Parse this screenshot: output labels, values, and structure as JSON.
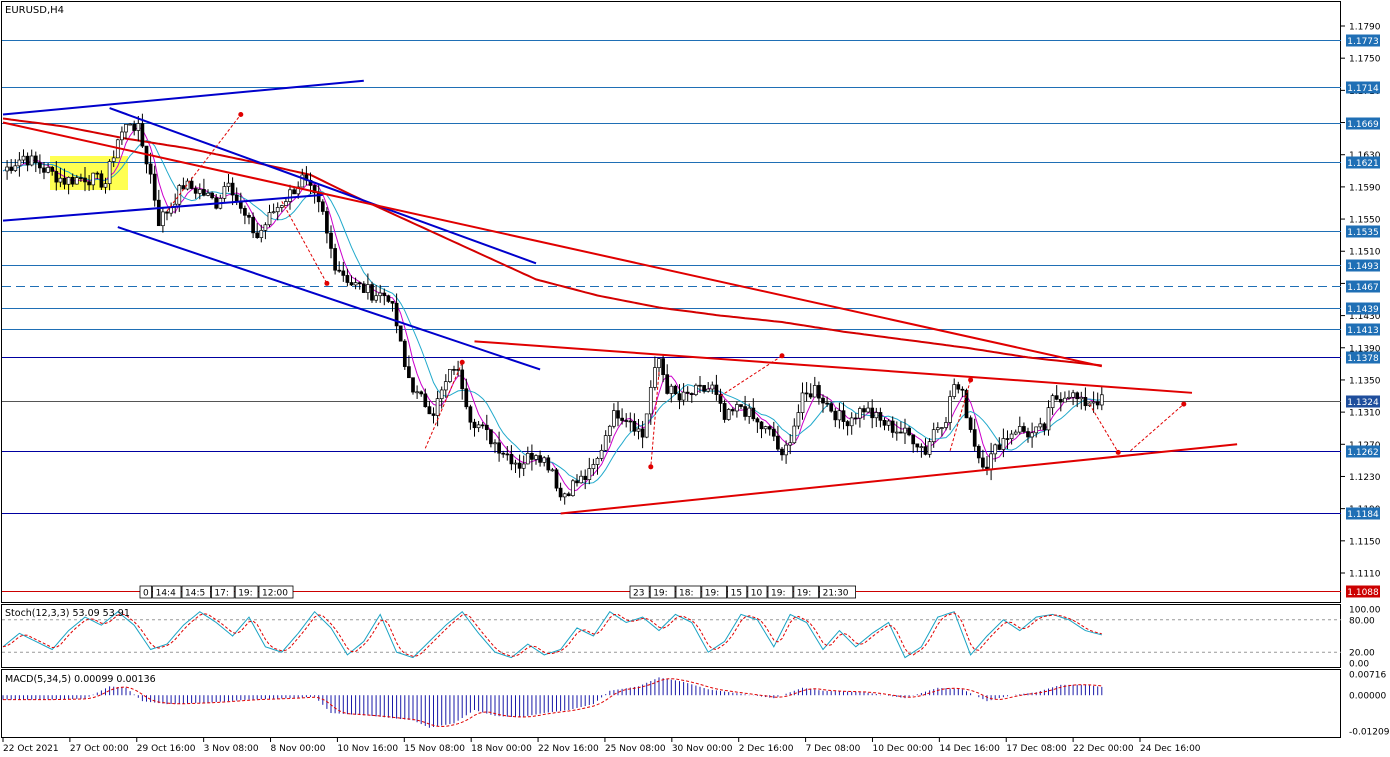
{
  "chart_data": {
    "type": "candlestick",
    "title": "EURUSD,H4",
    "price_axis": {
      "ticks": [
        "1.1790",
        "1.1750",
        "1.1710",
        "1.1670",
        "1.1630",
        "1.1590",
        "1.1550",
        "1.1510",
        "1.1470",
        "1.1430",
        "1.1390",
        "1.1350",
        "1.1310",
        "1.1270",
        "1.1230",
        "1.1190",
        "1.1150",
        "1.1110"
      ],
      "range": [
        1.1081,
        1.1811
      ]
    },
    "horizontal_levels": [
      {
        "label": "1.1773",
        "value": 1.1773,
        "color": "#1f6fb5",
        "style": "solid"
      },
      {
        "label": "1.1714",
        "value": 1.1714,
        "color": "#1f6fb5",
        "style": "solid"
      },
      {
        "label": "1.1669",
        "value": 1.1669,
        "color": "#1f6fb5",
        "style": "solid"
      },
      {
        "label": "1.1621",
        "value": 1.1621,
        "color": "#1f6fb5",
        "style": "solid"
      },
      {
        "label": "1.1535",
        "value": 1.1535,
        "color": "#1f6fb5",
        "style": "solid"
      },
      {
        "label": "1.1493",
        "value": 1.1493,
        "color": "#1f6fb5",
        "style": "solid"
      },
      {
        "label": "1.1467",
        "value": 1.1467,
        "color": "#1f6fb5",
        "style": "dashed"
      },
      {
        "label": "1.1439",
        "value": 1.1439,
        "color": "#1f6fb5",
        "style": "solid"
      },
      {
        "label": "1.1413",
        "value": 1.1413,
        "color": "#1f6fb5",
        "style": "solid"
      },
      {
        "label": "1.1378",
        "value": 1.1378,
        "color": "#0000a0",
        "style": "solid"
      },
      {
        "label": "1.1324",
        "value": 1.1324,
        "color": "#555555",
        "style": "solid"
      },
      {
        "label": "1.1262",
        "value": 1.1262,
        "color": "#0000a0",
        "style": "solid"
      },
      {
        "label": "1.1184",
        "value": 1.1184,
        "color": "#0000a0",
        "style": "solid"
      },
      {
        "label": "1.1088",
        "value": 1.1088,
        "color": "#cc0000",
        "style": "solid"
      }
    ],
    "time_axis": [
      "22 Oct 2021",
      "27 Oct 00:00",
      "29 Oct 16:00",
      "3 Nov 08:00",
      "8 Nov 00:00",
      "10 Nov 16:00",
      "15 Nov 08:00",
      "18 Nov 00:00",
      "22 Nov 16:00",
      "25 Nov 08:00",
      "30 Nov 00:00",
      "2 Dec 16:00",
      "7 Dec 08:00",
      "10 Dec 00:00",
      "14 Dec 16:00",
      "17 Dec 08:00",
      "22 Dec 00:00",
      "24 Dec 16:00"
    ],
    "event_labels_left": [
      "0",
      "14:4",
      "14:5",
      "17:",
      "19:",
      "12:00"
    ],
    "event_labels_right": [
      "23",
      "19:",
      "18:",
      "19:",
      "15",
      "10",
      "19:",
      "19:",
      "21:30"
    ],
    "close_path": [
      [
        0,
        1.161
      ],
      [
        5,
        1.1628
      ],
      [
        10,
        1.1612
      ],
      [
        15,
        1.1598
      ],
      [
        20,
        1.1602
      ],
      [
        25,
        1.1595
      ],
      [
        28,
        1.165
      ],
      [
        31,
        1.1672
      ],
      [
        33,
        1.166
      ],
      [
        36,
        1.1605
      ],
      [
        38,
        1.1548
      ],
      [
        40,
        1.156
      ],
      [
        44,
        1.1592
      ],
      [
        48,
        1.1585
      ],
      [
        52,
        1.157
      ],
      [
        55,
        1.1602
      ],
      [
        58,
        1.156
      ],
      [
        62,
        1.1528
      ],
      [
        66,
        1.156
      ],
      [
        70,
        1.1582
      ],
      [
        73,
        1.16
      ],
      [
        76,
        1.1575
      ],
      [
        78,
        1.1555
      ],
      [
        79,
        1.153
      ],
      [
        81,
        1.1495
      ],
      [
        85,
        1.147
      ],
      [
        90,
        1.1458
      ],
      [
        94,
        1.1455
      ],
      [
        96,
        1.1418
      ],
      [
        98,
        1.1365
      ],
      [
        101,
        1.133
      ],
      [
        105,
        1.1312
      ],
      [
        108,
        1.1345
      ],
      [
        110,
        1.1368
      ],
      [
        112,
        1.1345
      ],
      [
        114,
        1.1305
      ],
      [
        118,
        1.1282
      ],
      [
        122,
        1.1262
      ],
      [
        126,
        1.1245
      ],
      [
        130,
        1.1262
      ],
      [
        134,
        1.124
      ],
      [
        136,
        1.1205
      ],
      [
        139,
        1.122
      ],
      [
        143,
        1.1232
      ],
      [
        145,
        1.125
      ],
      [
        148,
        1.13
      ],
      [
        150,
        1.131
      ],
      [
        153,
        1.1302
      ],
      [
        156,
        1.128
      ],
      [
        158,
        1.134
      ],
      [
        160,
        1.1376
      ],
      [
        162,
        1.134
      ],
      [
        165,
        1.1325
      ],
      [
        169,
        1.1335
      ],
      [
        173,
        1.134
      ],
      [
        176,
        1.13
      ],
      [
        180,
        1.1318
      ],
      [
        184,
        1.1295
      ],
      [
        188,
        1.128
      ],
      [
        190,
        1.125
      ],
      [
        192,
        1.128
      ],
      [
        195,
        1.1325
      ],
      [
        198,
        1.134
      ],
      [
        201,
        1.132
      ],
      [
        205,
        1.1298
      ],
      [
        210,
        1.1315
      ],
      [
        214,
        1.1298
      ],
      [
        218,
        1.1288
      ],
      [
        222,
        1.1278
      ],
      [
        225,
        1.1262
      ],
      [
        227,
        1.1288
      ],
      [
        230,
        1.1305
      ],
      [
        232,
        1.1345
      ],
      [
        234,
        1.133
      ],
      [
        236,
        1.129
      ],
      [
        238,
        1.1255
      ],
      [
        240,
        1.1245
      ],
      [
        243,
        1.1272
      ],
      [
        247,
        1.129
      ],
      [
        251,
        1.1282
      ],
      [
        254,
        1.129
      ],
      [
        256,
        1.1325
      ],
      [
        260,
        1.1335
      ],
      [
        263,
        1.132
      ],
      [
        266,
        1.1326
      ],
      [
        268,
        1.1324
      ]
    ],
    "ma_slow": [
      [
        0,
        1.1675
      ],
      [
        15,
        1.1665
      ],
      [
        30,
        1.165
      ],
      [
        45,
        1.1638
      ],
      [
        60,
        1.1622
      ],
      [
        75,
        1.1605
      ],
      [
        85,
        1.158
      ],
      [
        100,
        1.1545
      ],
      [
        115,
        1.151
      ],
      [
        130,
        1.1475
      ],
      [
        145,
        1.1455
      ],
      [
        160,
        1.144
      ],
      [
        175,
        1.143
      ],
      [
        190,
        1.1422
      ],
      [
        205,
        1.141
      ],
      [
        220,
        1.14
      ],
      [
        235,
        1.139
      ],
      [
        250,
        1.1378
      ],
      [
        268,
        1.1368
      ]
    ],
    "ma_fast_period": 5,
    "ma_mid_period": 10,
    "trendlines": [
      {
        "color": "#0000cc",
        "from": [
          0,
          1.168
        ],
        "to": [
          88,
          1.1722
        ]
      },
      {
        "color": "#0000cc",
        "from": [
          0,
          1.1548
        ],
        "to": [
          78,
          1.158
        ]
      },
      {
        "color": "#0000cc",
        "from": [
          26,
          1.1688
        ],
        "to": [
          130,
          1.1495
        ]
      },
      {
        "color": "#0000cc",
        "from": [
          28,
          1.154
        ],
        "to": [
          131,
          1.1363
        ]
      },
      {
        "color": "#e00000",
        "from": [
          115,
          1.1398
        ],
        "to": [
          290,
          1.1334
        ]
      },
      {
        "color": "#e00000",
        "from": [
          136,
          1.1184
        ],
        "to": [
          301,
          1.127
        ]
      },
      {
        "color": "#e00000",
        "from": [
          0,
          1.167
        ],
        "to": [
          268,
          1.1367
        ]
      }
    ],
    "stochastic": {
      "label": "Stoch(12,3,3) 53.09 53.91",
      "levels": [
        "100.00",
        "80.00",
        "20.00",
        "0.00"
      ],
      "main": [
        [
          0,
          30
        ],
        [
          4,
          55
        ],
        [
          8,
          40
        ],
        [
          12,
          25
        ],
        [
          16,
          60
        ],
        [
          20,
          85
        ],
        [
          24,
          70
        ],
        [
          28,
          95
        ],
        [
          32,
          70
        ],
        [
          36,
          25
        ],
        [
          40,
          35
        ],
        [
          44,
          70
        ],
        [
          48,
          95
        ],
        [
          52,
          75
        ],
        [
          56,
          50
        ],
        [
          60,
          85
        ],
        [
          64,
          30
        ],
        [
          68,
          20
        ],
        [
          72,
          55
        ],
        [
          76,
          95
        ],
        [
          80,
          65
        ],
        [
          84,
          15
        ],
        [
          88,
          40
        ],
        [
          92,
          90
        ],
        [
          96,
          20
        ],
        [
          100,
          10
        ],
        [
          104,
          40
        ],
        [
          108,
          70
        ],
        [
          112,
          95
        ],
        [
          116,
          55
        ],
        [
          120,
          20
        ],
        [
          124,
          10
        ],
        [
          128,
          35
        ],
        [
          132,
          15
        ],
        [
          136,
          25
        ],
        [
          140,
          65
        ],
        [
          144,
          50
        ],
        [
          148,
          95
        ],
        [
          152,
          75
        ],
        [
          156,
          85
        ],
        [
          160,
          60
        ],
        [
          164,
          90
        ],
        [
          168,
          75
        ],
        [
          172,
          20
        ],
        [
          176,
          40
        ],
        [
          180,
          90
        ],
        [
          184,
          80
        ],
        [
          188,
          30
        ],
        [
          192,
          90
        ],
        [
          196,
          75
        ],
        [
          200,
          25
        ],
        [
          204,
          60
        ],
        [
          208,
          30
        ],
        [
          212,
          55
        ],
        [
          216,
          75
        ],
        [
          220,
          10
        ],
        [
          224,
          30
        ],
        [
          228,
          85
        ],
        [
          232,
          95
        ],
        [
          236,
          15
        ],
        [
          240,
          50
        ],
        [
          244,
          80
        ],
        [
          248,
          60
        ],
        [
          252,
          85
        ],
        [
          256,
          90
        ],
        [
          260,
          80
        ],
        [
          264,
          60
        ],
        [
          268,
          52
        ]
      ],
      "signal_lag": 2
    },
    "macd": {
      "label": "MACD(5,34,5) 0.00099 0.00136",
      "ticks": [
        "0.00716",
        "0.00000",
        "-0.01209"
      ],
      "range": [
        -0.01209,
        0.00716
      ],
      "histogram": [
        [
          0,
          -0.0015
        ],
        [
          10,
          -0.0015
        ],
        [
          20,
          -0.0012
        ],
        [
          26,
          0.003
        ],
        [
          30,
          0.0025
        ],
        [
          34,
          -0.002
        ],
        [
          40,
          -0.003
        ],
        [
          50,
          -0.0025
        ],
        [
          60,
          -0.0015
        ],
        [
          70,
          -0.001
        ],
        [
          76,
          -0.0005
        ],
        [
          80,
          -0.006
        ],
        [
          90,
          -0.007
        ],
        [
          100,
          -0.0085
        ],
        [
          104,
          -0.011
        ],
        [
          110,
          -0.0095
        ],
        [
          115,
          -0.005
        ],
        [
          120,
          -0.007
        ],
        [
          126,
          -0.0075
        ],
        [
          132,
          -0.006
        ],
        [
          138,
          -0.005
        ],
        [
          144,
          -0.003
        ],
        [
          148,
          0.0015
        ],
        [
          155,
          0.003
        ],
        [
          160,
          0.006
        ],
        [
          166,
          0.0045
        ],
        [
          172,
          0.002
        ],
        [
          180,
          0.0005
        ],
        [
          188,
          -0.001
        ],
        [
          195,
          0.0025
        ],
        [
          200,
          0.0015
        ],
        [
          210,
          0.001
        ],
        [
          220,
          -0.001
        ],
        [
          228,
          0.0025
        ],
        [
          234,
          0.002
        ],
        [
          240,
          -0.002
        ],
        [
          246,
          0.0
        ],
        [
          252,
          0.001
        ],
        [
          258,
          0.0035
        ],
        [
          264,
          0.0035
        ],
        [
          268,
          0.0028
        ]
      ]
    }
  }
}
